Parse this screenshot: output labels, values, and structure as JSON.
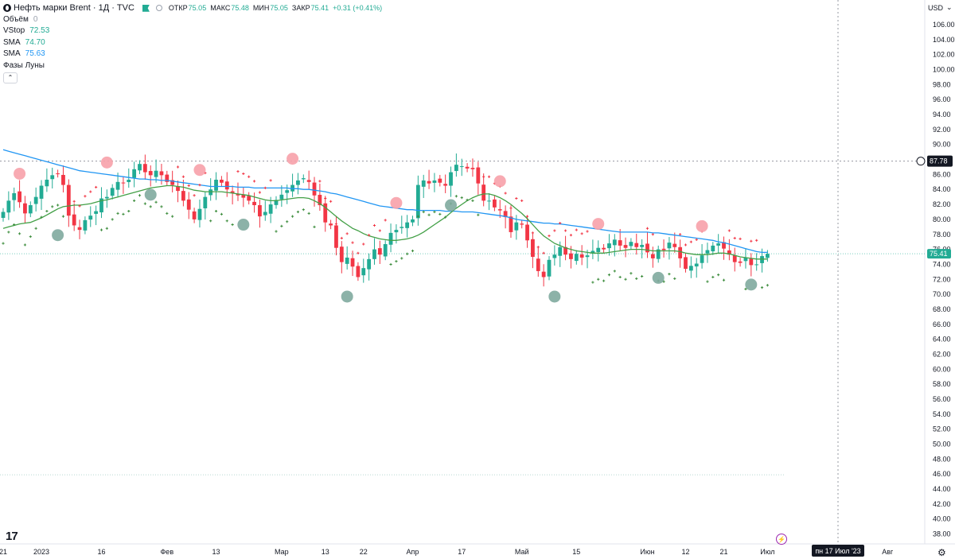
{
  "header": {
    "symbol_title": "Нефть марки Brent · 1Д · TVC",
    "open_label": "ОТКР",
    "open_value": "75.05",
    "high_label": "МАКС",
    "high_value": "75.48",
    "low_label": "МИН",
    "low_value": "75.05",
    "close_label": "ЗАКР",
    "close_value": "75.41",
    "change": "+0.31 (+0.41%)",
    "currency": "USD"
  },
  "indicators": [
    {
      "name": "Объём",
      "value": "0"
    },
    {
      "name": "VStop",
      "value": "72.53"
    },
    {
      "name": "SMA",
      "value": "74.70"
    },
    {
      "name": "SMA",
      "value": "75.63"
    },
    {
      "name": "Фазы Луны",
      "value": ""
    }
  ],
  "colors": {
    "up": "#22ab94",
    "down": "#f23645",
    "sma_fast": "#43a047",
    "sma_slow": "#2196f3",
    "moon_full": "#f7a1aa",
    "moon_new": "#7faa9e",
    "vstop_up": "#3b8c3b",
    "vstop_down": "#f23645"
  },
  "chart_data": {
    "type": "candlestick",
    "title": "Нефть марки Brent · 1Д · TVC",
    "ylim": [
      36,
      108
    ],
    "y_ticks": [
      "106.00",
      "104.00",
      "102.00",
      "100.00",
      "98.00",
      "96.00",
      "94.00",
      "92.00",
      "90.00",
      "88.00",
      "86.00",
      "84.00",
      "82.00",
      "80.00",
      "78.00",
      "76.00",
      "74.00",
      "72.00",
      "70.00",
      "68.00",
      "66.00",
      "64.00",
      "62.00",
      "60.00",
      "58.00",
      "56.00",
      "54.00",
      "52.00",
      "50.00",
      "48.00",
      "46.00",
      "44.00",
      "42.00",
      "40.00",
      "38.00"
    ],
    "x_labels": [
      {
        "label": "21",
        "index": 0
      },
      {
        "label": "2023",
        "index": 7
      },
      {
        "label": "16",
        "index": 18
      },
      {
        "label": "Фев",
        "index": 30
      },
      {
        "label": "13",
        "index": 39
      },
      {
        "label": "Мар",
        "index": 51
      },
      {
        "label": "13",
        "index": 59
      },
      {
        "label": "22",
        "index": 66
      },
      {
        "label": "Апр",
        "index": 75
      },
      {
        "label": "17",
        "index": 84
      },
      {
        "label": "Май",
        "index": 95
      },
      {
        "label": "15",
        "index": 105
      },
      {
        "label": "Июн",
        "index": 118
      },
      {
        "label": "12",
        "index": 125
      },
      {
        "label": "21",
        "index": 132
      },
      {
        "label": "Июл",
        "index": 140
      },
      {
        "label": "Авг",
        "index": 162
      }
    ],
    "crosshair_date": "пн 17 Июл '23",
    "crosshair_price": "87.78",
    "last_price": "75.41",
    "closes": [
      81.0,
      82.5,
      83.5,
      82.3,
      80.8,
      81.9,
      83.0,
      84.5,
      85.3,
      85.9,
      86.1,
      84.6,
      80.5,
      79.2,
      78.6,
      79.9,
      80.5,
      81.1,
      82.8,
      83.0,
      84.2,
      85.0,
      84.9,
      85.3,
      86.7,
      87.4,
      86.3,
      85.9,
      86.5,
      85.9,
      85.0,
      84.6,
      83.8,
      82.5,
      81.3,
      80.0,
      81.4,
      83.0,
      84.0,
      85.3,
      84.9,
      84.0,
      83.5,
      83.2,
      82.9,
      82.5,
      81.9,
      80.4,
      81.0,
      82.0,
      82.6,
      83.3,
      83.9,
      84.6,
      85.2,
      85.5,
      85.0,
      83.2,
      81.9,
      79.6,
      79.2,
      76.2,
      74.3,
      74.9,
      73.7,
      72.3,
      73.5,
      74.7,
      76.0,
      75.3,
      76.7,
      78.2,
      78.6,
      79.0,
      79.6,
      80.0,
      84.6,
      85.2,
      84.8,
      85.2,
      84.9,
      84.5,
      86.3,
      87.3,
      87.1,
      86.8,
      86.7,
      84.8,
      82.5,
      82.5,
      81.6,
      81.2,
      80.3,
      78.3,
      79.6,
      79.3,
      77.2,
      75.0,
      73.1,
      72.3,
      74.6,
      75.3,
      76.3,
      75.3,
      74.7,
      75.4,
      74.9,
      75.2,
      75.8,
      76.2,
      76.0,
      76.8,
      77.3,
      76.5,
      76.2,
      77.0,
      76.3,
      76.6,
      75.6,
      74.8,
      76.0,
      75.9,
      76.9,
      76.3,
      74.8,
      73.4,
      73.8,
      74.1,
      75.2,
      75.9,
      76.5,
      76.8,
      76.1,
      75.3,
      74.3,
      74.2,
      74.9,
      73.9,
      74.0,
      75.1,
      75.41
    ],
    "sma_fast": [
      78.8,
      79.0,
      79.2,
      79.4,
      79.5,
      79.6,
      79.9,
      80.2,
      80.6,
      81.0,
      81.4,
      81.7,
      81.8,
      81.9,
      81.9,
      82.0,
      82.1,
      82.3,
      82.5,
      82.6,
      82.8,
      83.0,
      83.2,
      83.4,
      83.6,
      83.8,
      84.0,
      84.2,
      84.3,
      84.4,
      84.5,
      84.5,
      84.4,
      84.3,
      84.1,
      83.9,
      83.8,
      83.7,
      83.7,
      83.7,
      83.7,
      83.6,
      83.5,
      83.4,
      83.3,
      83.2,
      83.0,
      82.8,
      82.6,
      82.5,
      82.5,
      82.6,
      82.7,
      82.8,
      82.9,
      82.9,
      82.8,
      82.5,
      82.1,
      81.6,
      81.0,
      80.4,
      79.8,
      79.3,
      78.8,
      78.5,
      78.1,
      77.8,
      77.6,
      77.4,
      77.3,
      77.2,
      77.2,
      77.3,
      77.4,
      77.6,
      77.9,
      78.3,
      78.8,
      79.3,
      79.8,
      80.3,
      80.9,
      81.5,
      82.0,
      82.5,
      82.9,
      83.2,
      83.4,
      83.4,
      83.2,
      82.9,
      82.5,
      82.0,
      81.4,
      80.8,
      80.1,
      79.3,
      78.5,
      77.8,
      77.3,
      76.8,
      76.5,
      76.2,
      76.0,
      75.8,
      75.7,
      75.6,
      75.5,
      75.5,
      75.5,
      75.6,
      75.7,
      75.8,
      75.9,
      76.0,
      76.0,
      76.0,
      75.9,
      75.8,
      75.8,
      75.8,
      75.8,
      75.8,
      75.7,
      75.5,
      75.4,
      75.3,
      75.3,
      75.3,
      75.4,
      75.5,
      75.5,
      75.4,
      75.2,
      75.0,
      74.9,
      74.8,
      74.7,
      74.7,
      74.7
    ],
    "sma_slow": [
      89.3,
      89.1,
      88.9,
      88.7,
      88.5,
      88.3,
      88.1,
      87.9,
      87.7,
      87.5,
      87.3,
      87.1,
      86.9,
      86.7,
      86.5,
      86.4,
      86.3,
      86.2,
      86.1,
      86.0,
      85.9,
      85.8,
      85.7,
      85.6,
      85.5,
      85.4,
      85.4,
      85.3,
      85.3,
      85.2,
      85.2,
      85.1,
      85.0,
      84.9,
      84.8,
      84.7,
      84.6,
      84.5,
      84.4,
      84.4,
      84.4,
      84.4,
      84.4,
      84.3,
      84.3,
      84.3,
      84.2,
      84.2,
      84.2,
      84.2,
      84.2,
      84.2,
      84.2,
      84.1,
      84.1,
      84.0,
      84.0,
      83.9,
      83.8,
      83.7,
      83.5,
      83.4,
      83.2,
      83.0,
      82.8,
      82.6,
      82.4,
      82.2,
      82.0,
      81.8,
      81.7,
      81.6,
      81.5,
      81.4,
      81.3,
      81.3,
      81.2,
      81.2,
      81.2,
      81.2,
      81.2,
      81.1,
      81.1,
      81.1,
      81.0,
      81.0,
      81.0,
      80.9,
      80.8,
      80.7,
      80.6,
      80.5,
      80.4,
      80.2,
      80.0,
      79.9,
      79.8,
      79.7,
      79.6,
      79.5,
      79.5,
      79.4,
      79.4,
      79.3,
      79.2,
      79.1,
      79.0,
      78.9,
      78.8,
      78.7,
      78.6,
      78.5,
      78.4,
      78.3,
      78.3,
      78.3,
      78.3,
      78.3,
      78.3,
      78.2,
      78.2,
      78.1,
      78.0,
      77.9,
      77.8,
      77.7,
      77.6,
      77.5,
      77.4,
      77.3,
      77.2,
      77.0,
      76.9,
      76.7,
      76.5,
      76.3,
      76.1,
      75.9,
      75.7,
      75.6,
      75.6
    ],
    "moon_phases": [
      {
        "index": 3,
        "type": "full"
      },
      {
        "index": 10,
        "type": "new"
      },
      {
        "index": 19,
        "type": "full"
      },
      {
        "index": 27,
        "type": "new"
      },
      {
        "index": 36,
        "type": "full"
      },
      {
        "index": 44,
        "type": "new"
      },
      {
        "index": 53,
        "type": "full"
      },
      {
        "index": 63,
        "type": "new"
      },
      {
        "index": 72,
        "type": "full"
      },
      {
        "index": 82,
        "type": "new"
      },
      {
        "index": 91,
        "type": "full"
      },
      {
        "index": 101,
        "type": "new"
      },
      {
        "index": 109,
        "type": "full"
      },
      {
        "index": 120,
        "type": "new"
      },
      {
        "index": 128,
        "type": "full"
      },
      {
        "index": 137,
        "type": "new"
      }
    ]
  }
}
